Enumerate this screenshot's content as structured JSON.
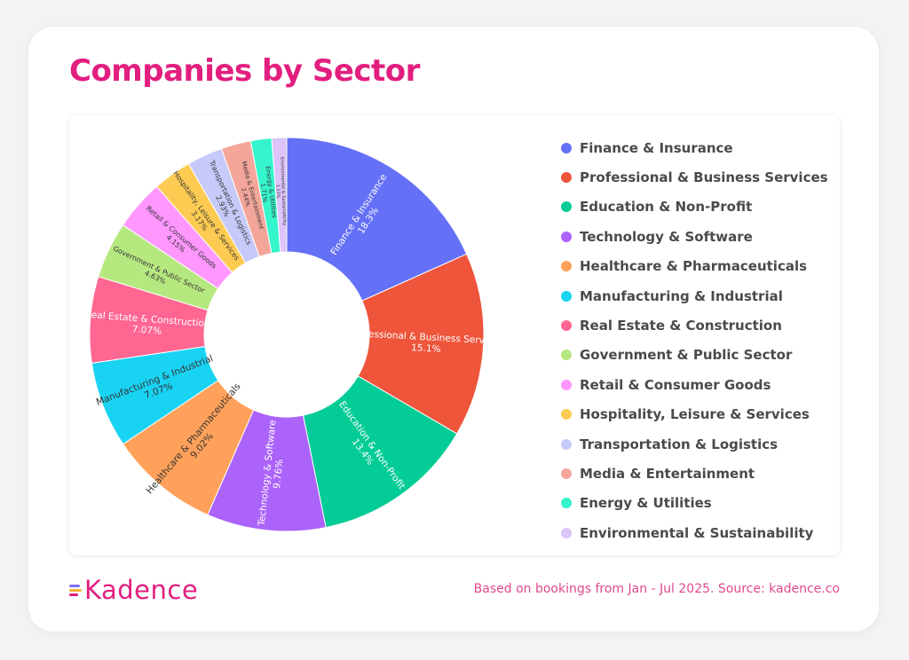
{
  "title": "Companies by Sector",
  "footnote": "Based on bookings from Jan - Jul 2025. Source: kadence.co",
  "logo": {
    "text": "Kadence",
    "mark_colors": [
      "#7e6cf2",
      "#f7b334",
      "#e21e7f"
    ]
  },
  "chart_data": {
    "type": "pie",
    "donut": true,
    "unit": "%",
    "legend_position": "right",
    "slices": [
      {
        "label": "Finance & Insurance",
        "value": 18.3,
        "display": "18.3%",
        "color": "#6470f6"
      },
      {
        "label": "Professional & Business Services",
        "value": 15.1,
        "display": "15.1%",
        "color": "#ee553b"
      },
      {
        "label": "Education & Non-Profit",
        "value": 13.4,
        "display": "13.4%",
        "color": "#03cc96"
      },
      {
        "label": "Technology & Software",
        "value": 9.76,
        "display": "9.76%",
        "color": "#ab63fa"
      },
      {
        "label": "Healthcare & Pharmaceuticals",
        "value": 9.02,
        "display": "9.02%",
        "color": "#ffa15a"
      },
      {
        "label": "Manufacturing & Industrial",
        "value": 7.07,
        "display": "7.07%",
        "color": "#19d3f3"
      },
      {
        "label": "Real Estate & Construction",
        "value": 7.07,
        "display": "7.07%",
        "color": "#ff6692"
      },
      {
        "label": "Government & Public Sector",
        "value": 4.63,
        "display": "4.63%",
        "color": "#b6e880"
      },
      {
        "label": "Retail & Consumer Goods",
        "value": 4.15,
        "display": "4.15%",
        "color": "#ff97ff"
      },
      {
        "label": "Hospitality, Leisure & Services",
        "value": 3.17,
        "display": "3.17%",
        "color": "#fecb52"
      },
      {
        "label": "Transportation & Logistics",
        "value": 2.93,
        "display": "2.93%",
        "color": "#c6caf8"
      },
      {
        "label": "Media & Entertainment",
        "value": 2.44,
        "display": "2.44%",
        "color": "#f4a69a"
      },
      {
        "label": "Energy & Utilities",
        "value": 1.71,
        "display": "1.71%",
        "color": "#34f5cc"
      },
      {
        "label": "Environmental & Sustainability",
        "value": 1.22,
        "display": "1.22%",
        "color": "#dcc3fa"
      }
    ]
  }
}
